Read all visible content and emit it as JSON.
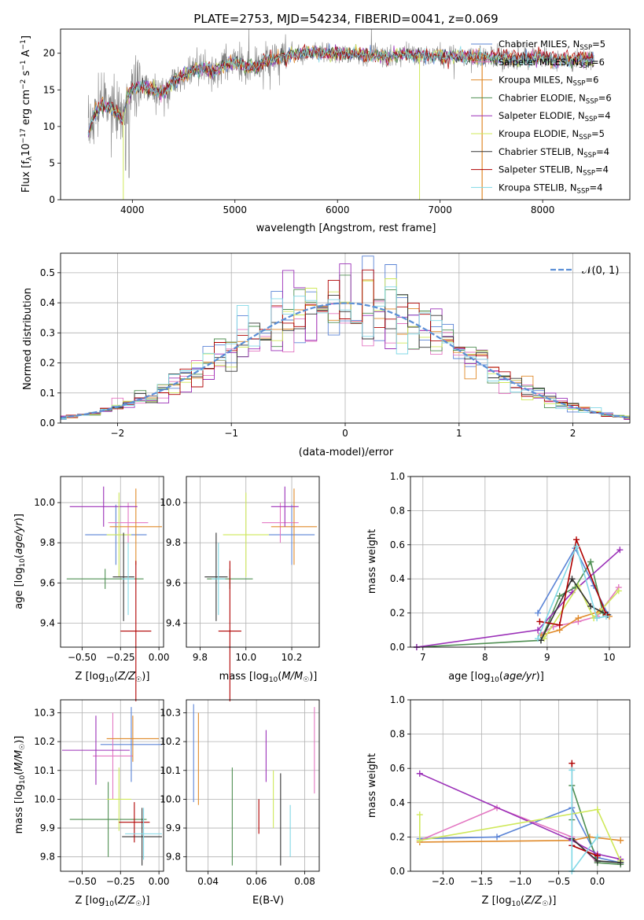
{
  "colors": {
    "Chabrier MILES": "#5b84d6",
    "Salpeter MILES": "#e377c2",
    "Kroupa MILES": "#e08a2a",
    "Chabrier ELODIE": "#4f8f52",
    "Salpeter ELODIE": "#9b30b8",
    "Kroupa ELODIE": "#cfe85a",
    "Chabrier STELIB": "#333333",
    "Salpeter STELIB": "#b00000",
    "Kroupa STELIB": "#80d8e6",
    "data": "#808080",
    "normal": "#5b8fd6"
  },
  "chart_data": [
    {
      "type": "line",
      "title": "PLATE=2753, MJD=54234, FIBERID=0041, z=0.069",
      "xlabel": "wavelength [Angstrom, rest frame]",
      "ylabel": "Flux [f_λ10^-17 erg cm^-2 s^-1 A^-1]",
      "xlim": [
        3300,
        8850
      ],
      "ylim": [
        0,
        23.3
      ],
      "xticks": [
        4000,
        5000,
        6000,
        7000,
        8000
      ],
      "yticks": [
        0,
        5,
        10,
        15,
        20
      ],
      "legend": [
        {
          "name": "Chabrier MILES",
          "n": "5"
        },
        {
          "name": "Salpeter MILES",
          "n": "6"
        },
        {
          "name": "Kroupa MILES",
          "n": "6"
        },
        {
          "name": "Chabrier ELODIE",
          "n": "6"
        },
        {
          "name": "Salpeter ELODIE",
          "n": "4"
        },
        {
          "name": "Kroupa ELODIE",
          "n": "5"
        },
        {
          "name": "Chabrier STELIB",
          "n": "4"
        },
        {
          "name": "Salpeter STELIB",
          "n": "4"
        },
        {
          "name": "Kroupa STELIB",
          "n": "4"
        }
      ],
      "legend_placement": "right",
      "spectrum_anchors": [
        [
          3570,
          9
        ],
        [
          3620,
          11.5
        ],
        [
          3700,
          13
        ],
        [
          3800,
          12.5
        ],
        [
          3900,
          11
        ],
        [
          3950,
          13.8
        ],
        [
          4000,
          15.2
        ],
        [
          4100,
          15.5
        ],
        [
          4200,
          15
        ],
        [
          4300,
          14.6
        ],
        [
          4400,
          16.2
        ],
        [
          4500,
          17
        ],
        [
          4600,
          17.6
        ],
        [
          4700,
          18
        ],
        [
          4800,
          17.5
        ],
        [
          4900,
          18.4
        ],
        [
          5000,
          18.8
        ],
        [
          5100,
          18.3
        ],
        [
          5200,
          18
        ],
        [
          5300,
          19
        ],
        [
          5400,
          19.4
        ],
        [
          5500,
          19.6
        ],
        [
          5600,
          19.8
        ],
        [
          5700,
          20
        ],
        [
          5800,
          20.1
        ],
        [
          5900,
          20
        ],
        [
          6000,
          20.2
        ],
        [
          6100,
          19.8
        ],
        [
          6200,
          20
        ],
        [
          6300,
          19.6
        ],
        [
          6400,
          19.8
        ],
        [
          6500,
          19.4
        ],
        [
          6600,
          20
        ],
        [
          6700,
          19.8
        ],
        [
          6800,
          19.7
        ],
        [
          7000,
          19.5
        ],
        [
          7200,
          19.6
        ],
        [
          7400,
          19.4
        ],
        [
          7600,
          19.3
        ],
        [
          7800,
          19.2
        ],
        [
          8000,
          19.3
        ],
        [
          8200,
          19
        ],
        [
          8400,
          19
        ],
        [
          8500,
          19
        ]
      ],
      "grid": false
    },
    {
      "type": "line",
      "xlabel": "(data-model)/error",
      "ylabel": "Normed distribution",
      "xlim": [
        -2.5,
        2.5
      ],
      "ylim": [
        0,
        0.565
      ],
      "xticks": [
        -2,
        -1,
        0,
        1,
        2
      ],
      "xtick_labels": [
        "−2",
        "−1",
        "0",
        "1",
        "2"
      ],
      "yticks": [
        0.0,
        0.1,
        0.2,
        0.3,
        0.4,
        0.5
      ],
      "ytick_labels": [
        "0.0",
        "0.1",
        "0.2",
        "0.3",
        "0.4",
        "0.5"
      ],
      "bin_width": 0.1,
      "normal_label": "𝒩(0, 1)",
      "legend_placement": "top-right",
      "grid": true
    },
    {
      "type": "scatter",
      "xlabel": "Z [log10(Z/Z☉)]",
      "ylabel": "age [log10(age/yr)]",
      "xlim": [
        -0.64,
        0.03
      ],
      "ylim": [
        9.28,
        10.13
      ],
      "xticks": [
        -0.5,
        -0.25,
        0.0
      ],
      "xtick_labels": [
        "−0.50",
        "−0.25",
        "0.00"
      ],
      "yticks": [
        9.4,
        9.6,
        9.8,
        10.0
      ],
      "ytick_labels": [
        "9.4",
        "9.6",
        "9.8",
        "10.0"
      ],
      "points": [
        {
          "model": "Chabrier MILES",
          "x": -0.28,
          "xerr": 0.2,
          "y": 9.84,
          "yerr": 0.15
        },
        {
          "model": "Salpeter MILES",
          "x": -0.2,
          "xerr": 0.13,
          "y": 9.9,
          "yerr": 0.1
        },
        {
          "model": "Kroupa MILES",
          "x": -0.15,
          "xerr": 0.17,
          "y": 9.88,
          "yerr": 0.19
        },
        {
          "model": "Chabrier ELODIE",
          "x": -0.35,
          "xerr": 0.25,
          "y": 9.62,
          "yerr": 0.05
        },
        {
          "model": "Salpeter ELODIE",
          "x": -0.36,
          "xerr": 0.22,
          "y": 9.98,
          "yerr": 0.1
        },
        {
          "model": "Kroupa ELODIE",
          "x": -0.26,
          "xerr": 0.08,
          "y": 9.84,
          "yerr": 0.21
        },
        {
          "model": "Chabrier STELIB",
          "x": -0.23,
          "xerr": 0.07,
          "y": 9.63,
          "yerr": 0.22
        },
        {
          "model": "Salpeter STELIB",
          "x": -0.15,
          "xerr": 0.1,
          "y": 9.36,
          "yerr": 0.35
        },
        {
          "model": "Kroupa STELIB",
          "x": -0.2,
          "xerr": 0.04,
          "y": 9.62,
          "yerr": 0.18
        }
      ],
      "grid": true
    },
    {
      "type": "scatter",
      "xlabel": "mass [log10(M/M☉)]",
      "ylabel": "",
      "xlim": [
        9.74,
        10.32
      ],
      "ylim": [
        9.28,
        10.13
      ],
      "xticks": [
        9.8,
        10.0,
        10.2
      ],
      "xtick_labels": [
        "9.8",
        "10.0",
        "10.2"
      ],
      "yticks": [
        9.4,
        9.6,
        9.8,
        10.0
      ],
      "ytick_labels": [
        "9.4",
        "9.6",
        "9.8",
        "10.0"
      ],
      "points": [
        {
          "model": "Chabrier MILES",
          "x": 10.2,
          "xerr": 0.1,
          "y": 9.84,
          "yerr": 0.15
        },
        {
          "model": "Salpeter MILES",
          "x": 10.15,
          "xerr": 0.08,
          "y": 9.9,
          "yerr": 0.1
        },
        {
          "model": "Kroupa MILES",
          "x": 10.21,
          "xerr": 0.1,
          "y": 9.88,
          "yerr": 0.19
        },
        {
          "model": "Chabrier ELODIE",
          "x": 9.93,
          "xerr": 0.1,
          "y": 9.62,
          "yerr": 0.05
        },
        {
          "model": "Salpeter ELODIE",
          "x": 10.17,
          "xerr": 0.06,
          "y": 9.98,
          "yerr": 0.1
        },
        {
          "model": "Kroupa ELODIE",
          "x": 10.0,
          "xerr": 0.1,
          "y": 9.84,
          "yerr": 0.21
        },
        {
          "model": "Chabrier STELIB",
          "x": 9.87,
          "xerr": 0.05,
          "y": 9.63,
          "yerr": 0.22
        },
        {
          "model": "Salpeter STELIB",
          "x": 9.93,
          "xerr": 0.05,
          "y": 9.36,
          "yerr": 0.35
        },
        {
          "model": "Kroupa STELIB",
          "x": 9.88,
          "xerr": 0.03,
          "y": 9.62,
          "yerr": 0.18
        }
      ],
      "grid": true
    },
    {
      "type": "line",
      "xlabel": "age  [log10(age/yr)]",
      "ylabel": "mass weight",
      "xlim": [
        6.8,
        10.33
      ],
      "ylim": [
        0,
        1
      ],
      "xticks": [
        7,
        8,
        9,
        10
      ],
      "xtick_labels": [
        "7",
        "8",
        "9",
        "10"
      ],
      "yticks": [
        0,
        0.2,
        0.4,
        0.6,
        0.8,
        1.0
      ],
      "ytick_labels": [
        "0.0",
        "0.2",
        "0.4",
        "0.6",
        "0.8",
        "1.0"
      ],
      "series": [
        {
          "model": "Chabrier MILES",
          "x": [
            8.85,
            9.45,
            9.75,
            9.98
          ],
          "y": [
            0.2,
            0.58,
            0.36,
            0.19
          ]
        },
        {
          "model": "Salpeter MILES",
          "x": [
            8.9,
            9.1,
            9.5,
            9.8,
            10.15
          ],
          "y": [
            0.08,
            0.12,
            0.15,
            0.18,
            0.35
          ]
        },
        {
          "model": "Kroupa MILES",
          "x": [
            8.9,
            9.2,
            9.5,
            9.85,
            10.0
          ],
          "y": [
            0.07,
            0.1,
            0.17,
            0.21,
            0.18
          ]
        },
        {
          "model": "Chabrier ELODIE",
          "x": [
            6.9,
            8.9,
            9.2,
            9.45,
            9.7,
            9.9
          ],
          "y": [
            0.0,
            0.04,
            0.3,
            0.35,
            0.5,
            0.2
          ]
        },
        {
          "model": "Salpeter ELODIE",
          "x": [
            6.9,
            8.85,
            9.4,
            10.17
          ],
          "y": [
            0.0,
            0.1,
            0.32,
            0.57
          ]
        },
        {
          "model": "Kroupa ELODIE",
          "x": [
            8.95,
            9.5,
            9.75,
            10.15
          ],
          "y": [
            0.05,
            0.36,
            0.17,
            0.33
          ]
        },
        {
          "model": "Chabrier STELIB",
          "x": [
            8.9,
            9.4,
            9.7,
            9.97
          ],
          "y": [
            0.04,
            0.4,
            0.24,
            0.19
          ]
        },
        {
          "model": "Salpeter STELIB",
          "x": [
            8.88,
            9.2,
            9.47,
            9.95
          ],
          "y": [
            0.15,
            0.13,
            0.63,
            0.19
          ]
        },
        {
          "model": "Kroupa STELIB",
          "x": [
            8.85,
            9.47,
            9.8,
            9.95
          ],
          "y": [
            0.05,
            0.59,
            0.17,
            0.18
          ]
        }
      ],
      "grid": true
    },
    {
      "type": "scatter",
      "xlabel": "Z [log10(Z/Z☉)]",
      "ylabel": "mass [log10(M/M☉)]",
      "xlim": [
        -0.64,
        0.03
      ],
      "ylim": [
        9.75,
        10.345
      ],
      "xticks": [
        -0.5,
        -0.25,
        0.0
      ],
      "xtick_labels": [
        "−0.50",
        "−0.25",
        "0.00"
      ],
      "yticks": [
        9.8,
        9.9,
        10.0,
        10.1,
        10.2,
        10.3
      ],
      "ytick_labels": [
        "9.8",
        "9.9",
        "10.0",
        "10.1",
        "10.2",
        "10.3"
      ],
      "points": [
        {
          "model": "Chabrier MILES",
          "x": -0.18,
          "xerr": 0.2,
          "y": 10.19,
          "yerr": 0.13
        },
        {
          "model": "Salpeter MILES",
          "x": -0.3,
          "xerr": 0.13,
          "y": 10.15,
          "yerr": 0.15
        },
        {
          "model": "Kroupa MILES",
          "x": -0.17,
          "xerr": 0.17,
          "y": 10.21,
          "yerr": 0.08
        },
        {
          "model": "Chabrier ELODIE",
          "x": -0.33,
          "xerr": 0.25,
          "y": 9.93,
          "yerr": 0.13
        },
        {
          "model": "Salpeter ELODIE",
          "x": -0.41,
          "xerr": 0.22,
          "y": 10.17,
          "yerr": 0.12
        },
        {
          "model": "Kroupa ELODIE",
          "x": -0.26,
          "xerr": 0.08,
          "y": 10.0,
          "yerr": 0.11
        },
        {
          "model": "Chabrier STELIB",
          "x": -0.11,
          "xerr": 0.13,
          "y": 9.87,
          "yerr": 0.1
        },
        {
          "model": "Salpeter STELIB",
          "x": -0.16,
          "xerr": 0.1,
          "y": 9.92,
          "yerr": 0.07
        },
        {
          "model": "Kroupa STELIB",
          "x": -0.1,
          "xerr": 0.12,
          "y": 9.88,
          "yerr": 0.09
        }
      ],
      "grid": true
    },
    {
      "type": "scatter",
      "xlabel": "E(B-V)",
      "ylabel": "",
      "xlim": [
        0.031,
        0.086
      ],
      "ylim": [
        9.75,
        10.345
      ],
      "xticks": [
        0.04,
        0.06,
        0.08
      ],
      "xtick_labels": [
        "0.04",
        "0.06",
        "0.08"
      ],
      "yticks": [
        9.8,
        9.9,
        10.0,
        10.1,
        10.2,
        10.3
      ],
      "ytick_labels": [
        "9.8",
        "9.9",
        "10.0",
        "10.1",
        "10.2",
        "10.3"
      ],
      "points": [
        {
          "model": "Chabrier MILES",
          "x": 0.034,
          "xerr": 0,
          "y": 10.16,
          "yerr": 0.17
        },
        {
          "model": "Salpeter MILES",
          "x": 0.084,
          "xerr": 0,
          "y": 10.17,
          "yerr": 0.15
        },
        {
          "model": "Kroupa MILES",
          "x": 0.036,
          "xerr": 0,
          "y": 10.14,
          "yerr": 0.16
        },
        {
          "model": "Chabrier ELODIE",
          "x": 0.05,
          "xerr": 0,
          "y": 9.94,
          "yerr": 0.17
        },
        {
          "model": "Salpeter ELODIE",
          "x": 0.064,
          "xerr": 0,
          "y": 10.15,
          "yerr": 0.09
        },
        {
          "model": "Kroupa ELODIE",
          "x": 0.067,
          "xerr": 0,
          "y": 10.0,
          "yerr": 0.1
        },
        {
          "model": "Chabrier STELIB",
          "x": 0.07,
          "xerr": 0,
          "y": 9.93,
          "yerr": 0.16
        },
        {
          "model": "Salpeter STELIB",
          "x": 0.061,
          "xerr": 0,
          "y": 9.94,
          "yerr": 0.06
        },
        {
          "model": "Kroupa STELIB",
          "x": 0.074,
          "xerr": 0,
          "y": 9.89,
          "yerr": 0.09
        }
      ],
      "grid": true
    },
    {
      "type": "line",
      "xlabel": "Z [log10(Z/Z☉)]",
      "ylabel": "mass weight",
      "xlim": [
        -2.42,
        0.42
      ],
      "ylim": [
        0,
        1
      ],
      "xticks": [
        -2.0,
        -1.5,
        -1.0,
        -0.5,
        0.0
      ],
      "xtick_labels": [
        "−2.0",
        "−1.5",
        "−1.0",
        "−0.5",
        "0.0"
      ],
      "yticks": [
        0,
        0.2,
        0.4,
        0.6,
        0.8,
        1.0
      ],
      "ytick_labels": [
        "0.0",
        "0.2",
        "0.4",
        "0.6",
        "0.8",
        "1.0"
      ],
      "series": [
        {
          "model": "Chabrier MILES",
          "x": [
            -2.3,
            -1.3,
            -0.33,
            0.0,
            0.3
          ],
          "y": [
            0.19,
            0.2,
            0.37,
            0.08,
            0.05
          ]
        },
        {
          "model": "Salpeter MILES",
          "x": [
            -2.3,
            -1.3,
            -0.33,
            0.0
          ],
          "y": [
            0.18,
            0.37,
            0.2,
            0.05
          ]
        },
        {
          "model": "Kroupa MILES",
          "x": [
            -2.3,
            -0.33,
            -0.1,
            0.3
          ],
          "y": [
            0.17,
            0.18,
            0.2,
            0.18
          ]
        },
        {
          "model": "Chabrier ELODIE",
          "x": [
            -0.33,
            -0.33,
            0.0,
            0.3
          ],
          "y": [
            0.3,
            0.5,
            0.05,
            0.04
          ]
        },
        {
          "model": "Salpeter ELODIE",
          "x": [
            -2.3,
            -0.33,
            0.0,
            0.3
          ],
          "y": [
            0.57,
            0.18,
            0.1,
            0.07
          ]
        },
        {
          "model": "Kroupa ELODIE",
          "x": [
            -2.3,
            -2.3,
            0.0,
            0.3
          ],
          "y": [
            0.33,
            0.18,
            0.36,
            0.06
          ]
        },
        {
          "model": "Chabrier STELIB",
          "x": [
            -0.33,
            0.0,
            0.3
          ],
          "y": [
            0.19,
            0.06,
            0.05
          ]
        },
        {
          "model": "Salpeter STELIB",
          "x": [
            -0.33,
            -0.33,
            0.0
          ],
          "y": [
            0.63,
            0.15,
            0.09
          ]
        },
        {
          "model": "Kroupa STELIB",
          "x": [
            -0.33,
            -0.33,
            0.0
          ],
          "y": [
            0.59,
            0.0,
            0.2
          ]
        }
      ],
      "grid": true
    }
  ]
}
